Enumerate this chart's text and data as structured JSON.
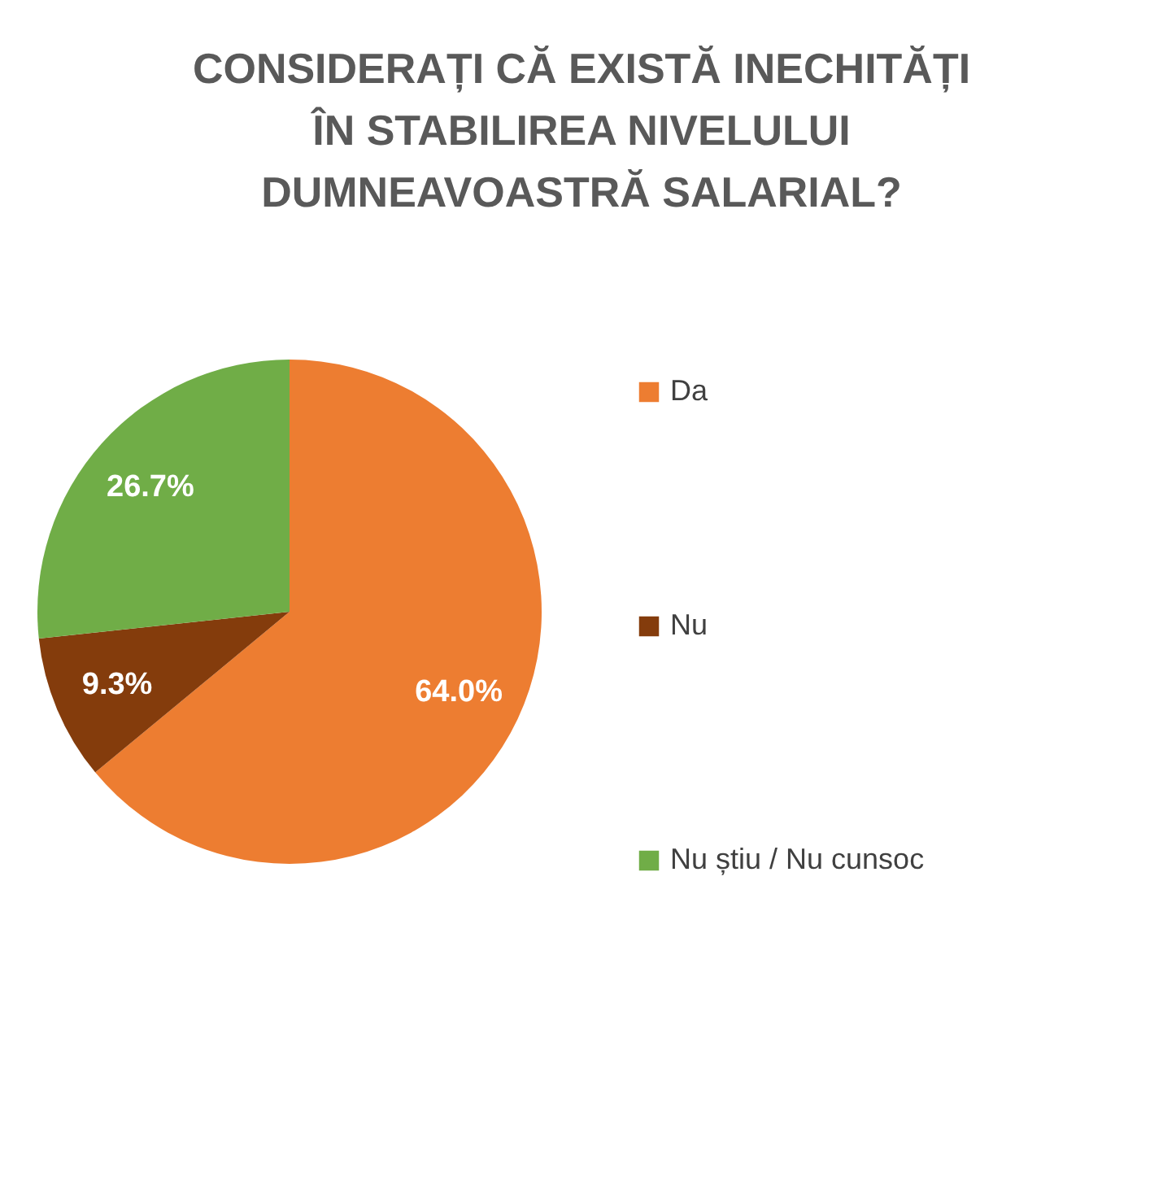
{
  "chart_data": {
    "type": "pie",
    "title": "CONSIDERAȚI CĂ EXISTĂ INECHITĂȚI\nÎN STABILIREA NIVELULUI\nDUMNEAVOASTRĂ SALARIAL?",
    "categories": [
      "Da",
      "Nu",
      "Nu știu / Nu cunsoc"
    ],
    "values": [
      64.0,
      9.3,
      26.7
    ],
    "colors": [
      "#ed7d31",
      "#843c0c",
      "#70ad47"
    ],
    "value_labels": [
      "64.0%",
      "9.3%",
      "26.7%"
    ],
    "legend": "right"
  }
}
